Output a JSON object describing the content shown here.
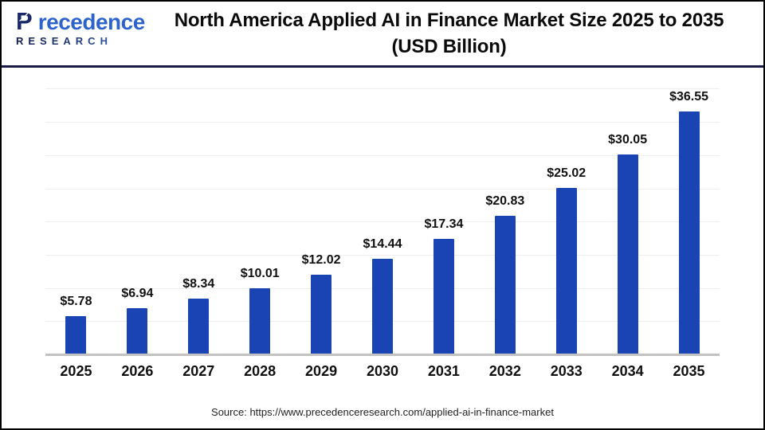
{
  "header": {
    "logo": {
      "brand_initial": "P",
      "brand_rest": "recedence",
      "research": "RESEARCH"
    },
    "title_line1": "North America Applied AI in Finance Market Size 2025 to 2035",
    "title_line2": "(USD Billion)"
  },
  "chart_data": {
    "type": "bar",
    "title": "North America Applied AI in Finance Market Size 2025 to 2035 (USD Billion)",
    "categories": [
      "2025",
      "2026",
      "2027",
      "2028",
      "2029",
      "2030",
      "2031",
      "2032",
      "2033",
      "2034",
      "2035"
    ],
    "values": [
      5.78,
      6.94,
      8.34,
      10.01,
      12.02,
      14.44,
      17.34,
      20.83,
      25.02,
      30.05,
      36.55
    ],
    "value_labels": [
      "$5.78",
      "$6.94",
      "$8.34",
      "$10.01",
      "$12.02",
      "$14.44",
      "$17.34",
      "$20.83",
      "$25.02",
      "$30.05",
      "$36.55"
    ],
    "xlabel": "",
    "ylabel": "",
    "ylim": [
      0,
      40
    ],
    "gridline_step": 5,
    "grid": true,
    "legend": false,
    "bar_color": "#1a43b4",
    "gridline_color": "#eeeeee",
    "axis_line_color": "#c2c2c2"
  },
  "footer": {
    "source": "Source: https://www.precedenceresearch.com/applied-ai-in-finance-market"
  }
}
